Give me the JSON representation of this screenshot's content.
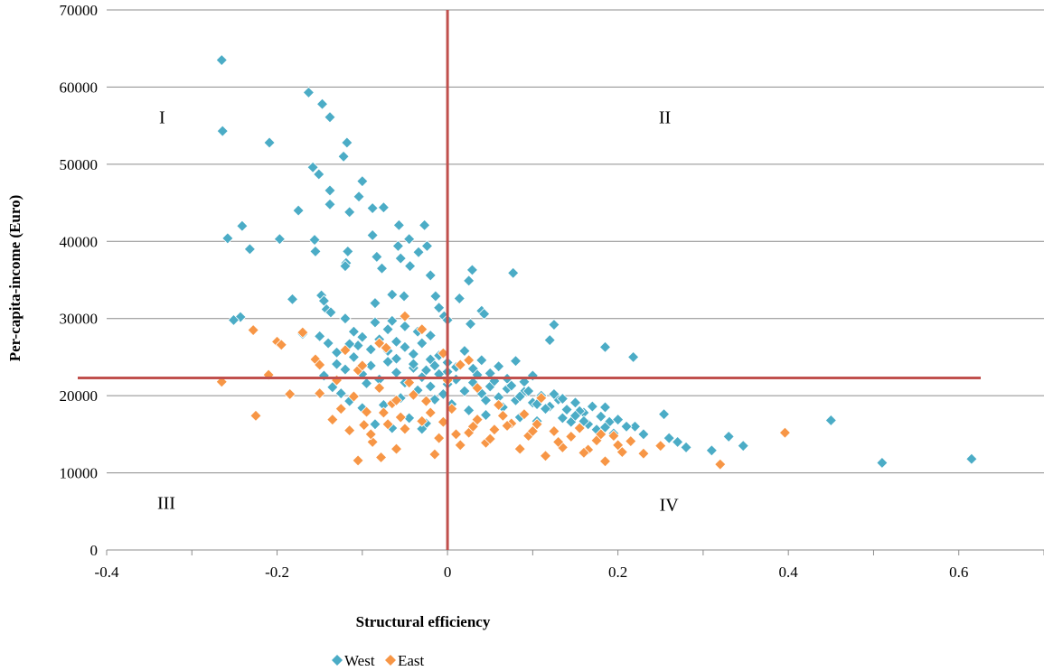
{
  "chart_data": {
    "type": "scatter",
    "xlabel": "Structural efficiency",
    "ylabel": "Per-capita-income (Euro)",
    "xlim": [
      -0.4,
      0.7
    ],
    "ylim": [
      0,
      70000
    ],
    "x_ticks": [
      -0.4,
      -0.2,
      0,
      0.2,
      0.4,
      0.6
    ],
    "x_tick_labels": [
      "-0.4",
      "-0.2",
      "0",
      "0.2",
      "0.4",
      "0.6"
    ],
    "y_ticks": [
      0,
      10000,
      20000,
      30000,
      40000,
      50000,
      60000,
      70000
    ],
    "y_tick_labels": [
      "0",
      "10000",
      "20000",
      "30000",
      "40000",
      "50000",
      "60000",
      "70000"
    ],
    "grid": "horizontal",
    "legend_position": "bottom",
    "reference_lines": {
      "vertical_x": 0,
      "horizontal_y": 22300,
      "color": "#c0504d"
    },
    "quadrants": [
      {
        "label": "I",
        "x": -0.335,
        "y": 55300
      },
      {
        "label": "II",
        "x": 0.255,
        "y": 55300
      },
      {
        "label": "III",
        "x": -0.33,
        "y": 5300
      },
      {
        "label": "IV",
        "x": 0.26,
        "y": 5100
      }
    ],
    "series": [
      {
        "name": "West",
        "color": "#4bacc6",
        "points": [
          [
            -0.265,
            63500
          ],
          [
            -0.264,
            54300
          ],
          [
            -0.163,
            59300
          ],
          [
            -0.147,
            57800
          ],
          [
            -0.138,
            56100
          ],
          [
            -0.209,
            52800
          ],
          [
            -0.118,
            52800
          ],
          [
            -0.122,
            51000
          ],
          [
            -0.158,
            49600
          ],
          [
            -0.151,
            48700
          ],
          [
            -0.1,
            47800
          ],
          [
            -0.138,
            46600
          ],
          [
            -0.104,
            45800
          ],
          [
            -0.138,
            44800
          ],
          [
            -0.075,
            44400
          ],
          [
            -0.175,
            44000
          ],
          [
            -0.115,
            43800
          ],
          [
            -0.088,
            44300
          ],
          [
            -0.057,
            42100
          ],
          [
            -0.027,
            42100
          ],
          [
            -0.241,
            42000
          ],
          [
            -0.258,
            40400
          ],
          [
            -0.197,
            40300
          ],
          [
            -0.156,
            40200
          ],
          [
            -0.088,
            40800
          ],
          [
            -0.045,
            40300
          ],
          [
            -0.024,
            39400
          ],
          [
            -0.034,
            38600
          ],
          [
            -0.058,
            39400
          ],
          [
            -0.232,
            39000
          ],
          [
            -0.155,
            38700
          ],
          [
            -0.117,
            38700
          ],
          [
            -0.083,
            38000
          ],
          [
            -0.077,
            36500
          ],
          [
            -0.055,
            37800
          ],
          [
            -0.044,
            36800
          ],
          [
            -0.119,
            37200
          ],
          [
            -0.12,
            36800
          ],
          [
            -0.02,
            35600
          ],
          [
            0.077,
            35900
          ],
          [
            0.029,
            36300
          ],
          [
            0.025,
            34900
          ],
          [
            -0.148,
            33000
          ],
          [
            -0.145,
            32300
          ],
          [
            -0.065,
            33100
          ],
          [
            -0.051,
            32900
          ],
          [
            -0.014,
            32900
          ],
          [
            -0.182,
            32500
          ],
          [
            -0.085,
            32000
          ],
          [
            0.014,
            32600
          ],
          [
            0.04,
            31000
          ],
          [
            0.043,
            30600
          ],
          [
            -0.142,
            31200
          ],
          [
            -0.137,
            30800
          ],
          [
            -0.01,
            31400
          ],
          [
            -0.004,
            30300
          ],
          [
            -0.243,
            30200
          ],
          [
            -0.251,
            29800
          ],
          [
            -0.12,
            30000
          ],
          [
            -0.065,
            29700
          ],
          [
            0.027,
            29300
          ],
          [
            0.125,
            29200
          ],
          [
            0.12,
            27200
          ],
          [
            0.185,
            26300
          ],
          [
            0.218,
            25000
          ],
          [
            0.254,
            17600
          ],
          [
            0.33,
            14700
          ],
          [
            0.347,
            13500
          ],
          [
            0.31,
            12900
          ],
          [
            0.45,
            16800
          ],
          [
            0.51,
            11300
          ],
          [
            0.615,
            11800
          ],
          [
            0.22,
            16000
          ],
          [
            0.23,
            15000
          ],
          [
            0.26,
            14500
          ],
          [
            0.27,
            14000
          ],
          [
            0.28,
            13300
          ],
          [
            -0.15,
            27700
          ],
          [
            -0.17,
            28000
          ],
          [
            -0.14,
            26800
          ],
          [
            -0.13,
            25600
          ],
          [
            -0.11,
            28300
          ],
          [
            -0.1,
            27600
          ],
          [
            -0.09,
            26000
          ],
          [
            -0.08,
            27300
          ],
          [
            -0.07,
            25800
          ],
          [
            -0.06,
            27000
          ],
          [
            -0.05,
            26300
          ],
          [
            -0.04,
            25400
          ],
          [
            -0.03,
            26800
          ],
          [
            -0.02,
            24700
          ],
          [
            -0.01,
            25200
          ],
          [
            0.0,
            24300
          ],
          [
            0.01,
            23700
          ],
          [
            0.02,
            25800
          ],
          [
            0.03,
            23500
          ],
          [
            0.04,
            24600
          ],
          [
            0.05,
            22900
          ],
          [
            0.06,
            23800
          ],
          [
            0.07,
            22200
          ],
          [
            0.08,
            24500
          ],
          [
            0.09,
            21800
          ],
          [
            0.1,
            22600
          ],
          [
            -0.13,
            24100
          ],
          [
            -0.12,
            23400
          ],
          [
            -0.11,
            25000
          ],
          [
            -0.1,
            22800
          ],
          [
            -0.09,
            23900
          ],
          [
            -0.08,
            22100
          ],
          [
            -0.07,
            24400
          ],
          [
            -0.06,
            23000
          ],
          [
            -0.05,
            21700
          ],
          [
            -0.04,
            23600
          ],
          [
            -0.03,
            22400
          ],
          [
            -0.02,
            21200
          ],
          [
            -0.01,
            22800
          ],
          [
            0.0,
            21500
          ],
          [
            0.01,
            22100
          ],
          [
            0.02,
            20600
          ],
          [
            0.03,
            21700
          ],
          [
            0.04,
            20300
          ],
          [
            0.05,
            21200
          ],
          [
            0.06,
            19800
          ],
          [
            0.07,
            20900
          ],
          [
            0.08,
            19400
          ],
          [
            0.09,
            20500
          ],
          [
            0.1,
            19100
          ],
          [
            0.11,
            20000
          ],
          [
            0.12,
            18600
          ],
          [
            0.13,
            19500
          ],
          [
            0.14,
            18200
          ],
          [
            0.15,
            19100
          ],
          [
            0.16,
            17800
          ],
          [
            0.17,
            18600
          ],
          [
            0.18,
            17300
          ],
          [
            0.19,
            16600
          ],
          [
            0.2,
            16900
          ],
          [
            0.21,
            16000
          ],
          [
            0.125,
            20200
          ],
          [
            0.135,
            17100
          ],
          [
            0.145,
            16600
          ],
          [
            0.155,
            18000
          ],
          [
            0.165,
            16300
          ],
          [
            0.175,
            15600
          ],
          [
            0.185,
            18500
          ],
          [
            0.195,
            15100
          ],
          [
            -0.085,
            29500
          ],
          [
            -0.07,
            28600
          ],
          [
            -0.05,
            29000
          ],
          [
            -0.035,
            28300
          ],
          [
            -0.02,
            27800
          ],
          [
            0.0,
            29800
          ],
          [
            -0.145,
            22600
          ],
          [
            -0.135,
            21100
          ],
          [
            -0.125,
            20300
          ],
          [
            -0.115,
            19300
          ],
          [
            -0.1,
            18400
          ],
          [
            -0.075,
            18800
          ],
          [
            -0.055,
            19700
          ],
          [
            -0.035,
            20700
          ],
          [
            -0.015,
            19500
          ],
          [
            0.005,
            18900
          ],
          [
            0.025,
            18100
          ],
          [
            0.045,
            17500
          ],
          [
            0.065,
            18500
          ],
          [
            0.085,
            17200
          ],
          [
            0.105,
            16700
          ],
          [
            0.115,
            18300
          ],
          [
            -0.045,
            17100
          ],
          [
            -0.025,
            16400
          ],
          [
            -0.065,
            15800
          ],
          [
            -0.085,
            16300
          ],
          [
            -0.03,
            15700
          ],
          [
            -0.06,
            24800
          ],
          [
            -0.04,
            24100
          ],
          [
            -0.025,
            23300
          ],
          [
            0.015,
            24000
          ],
          [
            0.035,
            22700
          ],
          [
            0.055,
            21900
          ],
          [
            0.075,
            21300
          ],
          [
            0.095,
            20600
          ],
          [
            -0.015,
            23900
          ],
          [
            0.0,
            23100
          ],
          [
            0.045,
            19400
          ],
          [
            0.085,
            19900
          ],
          [
            0.105,
            18900
          ],
          [
            0.135,
            19600
          ],
          [
            0.15,
            17400
          ],
          [
            0.16,
            16700
          ],
          [
            0.185,
            15900
          ],
          [
            -0.005,
            20200
          ],
          [
            -0.095,
            21600
          ],
          [
            -0.105,
            26500
          ],
          [
            -0.115,
            26700
          ]
        ]
      },
      {
        "name": "East",
        "color": "#f79646",
        "points": [
          [
            -0.228,
            28500
          ],
          [
            -0.2,
            27000
          ],
          [
            -0.195,
            26600
          ],
          [
            -0.17,
            28200
          ],
          [
            -0.155,
            24700
          ],
          [
            -0.15,
            24000
          ],
          [
            -0.12,
            25900
          ],
          [
            -0.105,
            23300
          ],
          [
            -0.08,
            26800
          ],
          [
            -0.072,
            26200
          ],
          [
            -0.05,
            30300
          ],
          [
            -0.03,
            28600
          ],
          [
            -0.005,
            25500
          ],
          [
            0.015,
            24000
          ],
          [
            0.025,
            24600
          ],
          [
            -0.265,
            21800
          ],
          [
            -0.21,
            22700
          ],
          [
            -0.225,
            17400
          ],
          [
            -0.185,
            20200
          ],
          [
            -0.15,
            20300
          ],
          [
            -0.135,
            16900
          ],
          [
            -0.125,
            18300
          ],
          [
            -0.115,
            15500
          ],
          [
            -0.105,
            11600
          ],
          [
            -0.098,
            16200
          ],
          [
            -0.095,
            17900
          ],
          [
            -0.088,
            14000
          ],
          [
            -0.078,
            12000
          ],
          [
            -0.07,
            16300
          ],
          [
            -0.065,
            19000
          ],
          [
            -0.06,
            13100
          ],
          [
            -0.055,
            17200
          ],
          [
            -0.05,
            15700
          ],
          [
            -0.04,
            20100
          ],
          [
            -0.03,
            16700
          ],
          [
            -0.02,
            17800
          ],
          [
            -0.015,
            12400
          ],
          [
            -0.005,
            16600
          ],
          [
            0.005,
            18300
          ],
          [
            0.015,
            13600
          ],
          [
            0.025,
            15200
          ],
          [
            0.035,
            16900
          ],
          [
            0.045,
            13900
          ],
          [
            0.055,
            15600
          ],
          [
            0.065,
            17400
          ],
          [
            0.075,
            16400
          ],
          [
            0.085,
            13100
          ],
          [
            0.095,
            14800
          ],
          [
            0.105,
            16300
          ],
          [
            0.115,
            12200
          ],
          [
            0.125,
            15400
          ],
          [
            0.135,
            13300
          ],
          [
            0.145,
            14700
          ],
          [
            0.155,
            15800
          ],
          [
            0.165,
            13000
          ],
          [
            0.175,
            14200
          ],
          [
            0.185,
            11500
          ],
          [
            0.195,
            14800
          ],
          [
            0.205,
            12700
          ],
          [
            0.215,
            14100
          ],
          [
            0.23,
            12500
          ],
          [
            0.25,
            13500
          ],
          [
            0.32,
            11100
          ],
          [
            0.396,
            15200
          ],
          [
            0.11,
            19700
          ],
          [
            0.09,
            17600
          ],
          [
            0.07,
            16100
          ],
          [
            0.05,
            14400
          ],
          [
            0.03,
            16000
          ],
          [
            0.01,
            15000
          ],
          [
            -0.01,
            14500
          ],
          [
            -0.11,
            19900
          ],
          [
            -0.09,
            15000
          ],
          [
            -0.075,
            17800
          ],
          [
            -0.045,
            21700
          ],
          [
            -0.025,
            19300
          ],
          [
            0.0,
            22000
          ],
          [
            0.035,
            21000
          ],
          [
            0.06,
            18800
          ],
          [
            0.1,
            15400
          ],
          [
            0.13,
            14000
          ],
          [
            0.16,
            12600
          ],
          [
            0.18,
            15000
          ],
          [
            0.2,
            13600
          ],
          [
            -0.1,
            23900
          ],
          [
            -0.08,
            21000
          ],
          [
            -0.06,
            19400
          ],
          [
            -0.13,
            22000
          ]
        ]
      }
    ]
  }
}
